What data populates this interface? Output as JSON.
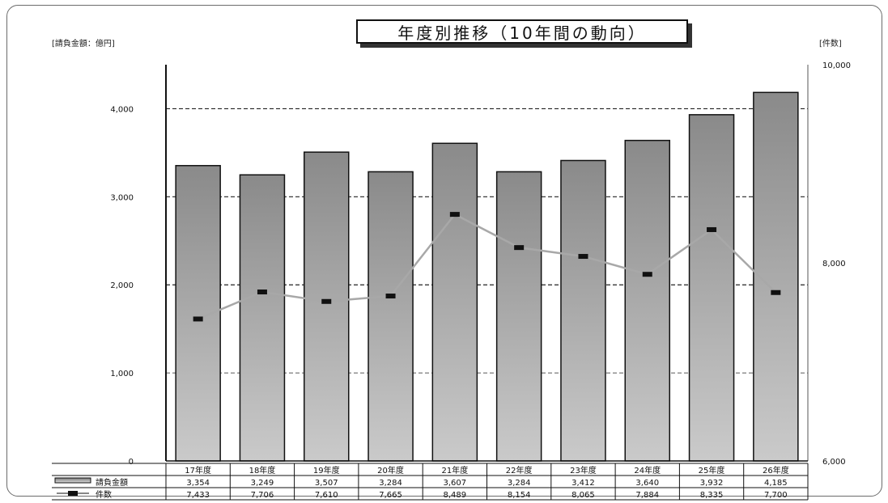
{
  "title": "年度別推移（10年間の動向）",
  "left_unit": "[請負金額：億円]",
  "right_unit": "[件数]",
  "chart_data": {
    "type": "bar",
    "categories": [
      "17年度",
      "18年度",
      "19年度",
      "20年度",
      "21年度",
      "22年度",
      "23年度",
      "24年度",
      "25年度",
      "26年度"
    ],
    "series": [
      {
        "name": "請負金額",
        "type": "bar",
        "axis": "left",
        "values": [
          3354,
          3249,
          3507,
          3284,
          3607,
          3284,
          3412,
          3640,
          3932,
          4185
        ],
        "labels": [
          "3,354",
          "3,249",
          "3,507",
          "3,284",
          "3,607",
          "3,284",
          "3,412",
          "3,640",
          "3,932",
          "4,185"
        ]
      },
      {
        "name": "件数",
        "type": "line",
        "axis": "right",
        "values": [
          7433,
          7706,
          7610,
          7665,
          8489,
          8154,
          8065,
          7884,
          8335,
          7700
        ],
        "labels": [
          "7,433",
          "7,706",
          "7,610",
          "7,665",
          "8,489",
          "8,154",
          "8,065",
          "7,884",
          "8,335",
          "7,700"
        ]
      }
    ],
    "left_axis": {
      "ylim": [
        0,
        4500
      ],
      "ticks": [
        0,
        1000,
        2000,
        3000,
        4000
      ],
      "tick_labels": [
        "0",
        "1,000",
        "2,000",
        "3,000",
        "4,000"
      ]
    },
    "right_axis": {
      "ylim": [
        6000,
        10000
      ],
      "ticks": [
        6000,
        8000,
        10000
      ],
      "tick_labels": [
        "6,000",
        "8,000",
        "10,000"
      ]
    },
    "grid": true,
    "legend": "data-table-bottom",
    "colors": {
      "bar_top": "#8a8a8a",
      "bar_bottom": "#c9c9c9",
      "line": "#a8a8a8",
      "marker": "#111111"
    }
  }
}
